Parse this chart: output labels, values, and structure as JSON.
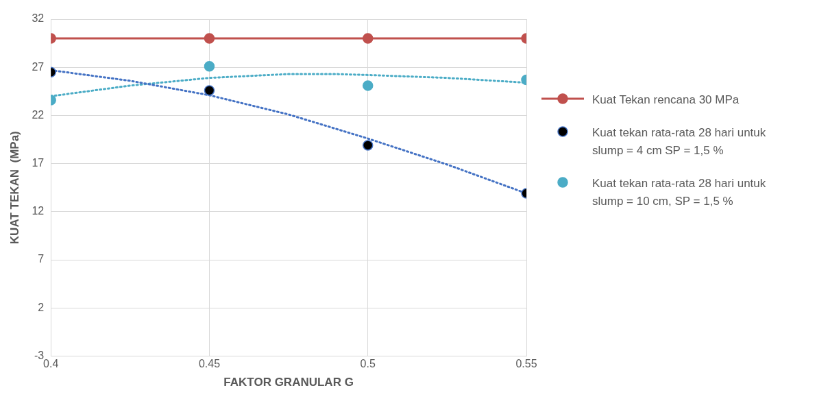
{
  "chart_data": {
    "type": "scatter",
    "xlabel": "FAKTOR GRANULAR G",
    "ylabel": "KUAT TEKAN  (MPa)",
    "x": [
      0.4,
      0.45,
      0.5,
      0.55
    ],
    "series": [
      {
        "name": "Kuat Tekan rencana 30 MPa",
        "type": "line",
        "color": "#c0504d",
        "marker": "circle",
        "values": [
          30,
          30,
          30,
          30
        ]
      },
      {
        "name": "Kuat tekan rata-rata 28 hari untuk slump = 4 cm SP = 1,5 %",
        "color": "#000000",
        "marker": "circle",
        "values": [
          26.5,
          24.6,
          18.9,
          13.9
        ]
      },
      {
        "name": "Kuat tekan rata-rata 28 hari untuk slump = 10 cm, SP = 1,5 %",
        "color": "#4bacc6",
        "marker": "circle",
        "values": [
          23.6,
          27.1,
          25.1,
          25.7
        ]
      },
      {
        "type": "line",
        "color": "#4472c4",
        "marker": "none",
        "line_style": "dotted",
        "x": [
          0.4,
          0.425,
          0.45,
          0.475,
          0.5,
          0.525,
          0.55
        ],
        "values": [
          26.7,
          25.6,
          24.1,
          22.1,
          19.6,
          16.9,
          13.9
        ]
      },
      {
        "type": "line",
        "color": "#4bacc6",
        "marker": "none",
        "line_style": "dotted",
        "x": [
          0.4,
          0.425,
          0.45,
          0.475,
          0.49,
          0.5,
          0.525,
          0.55
        ],
        "values": [
          24.0,
          25.1,
          25.9,
          26.3,
          26.3,
          26.2,
          25.9,
          25.4
        ]
      }
    ],
    "xlim": [
      0.4,
      0.55
    ],
    "xticks": [
      0.4,
      0.45,
      0.5,
      0.55
    ],
    "ylim": [
      -3,
      32
    ],
    "yticks": [
      -3,
      2,
      7,
      12,
      17,
      22,
      27,
      32
    ],
    "grid": true,
    "legend": "right"
  }
}
